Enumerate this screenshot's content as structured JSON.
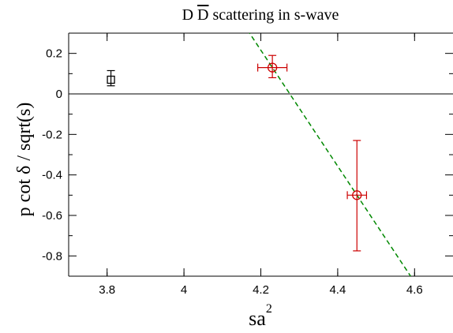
{
  "chart_data": {
    "type": "scatter",
    "title": "D D̅ scattering in s-wave",
    "title_parts": {
      "prefix": "D ",
      "overlined": "D",
      "suffix": " scattering in s-wave"
    },
    "xlabel": "sa",
    "xlabel_superscript": "2",
    "ylabel": "p cot δ / sqrt(s)",
    "xlim": [
      3.7,
      4.7
    ],
    "ylim": [
      -0.9,
      0.3
    ],
    "x_ticks": [
      3.8,
      4.0,
      4.2,
      4.4,
      4.6
    ],
    "x_tick_labels": [
      "3.8",
      "4",
      "4.2",
      "4.4",
      "4.6"
    ],
    "y_ticks": [
      0.2,
      0.0,
      -0.2,
      -0.4,
      -0.6,
      -0.8
    ],
    "y_tick_labels": [
      "0.2",
      "0",
      "-0.2",
      "-0.4",
      "-0.6",
      "-0.8"
    ],
    "grid": false,
    "legend": "none",
    "zero_line": 0,
    "series": [
      {
        "marker": "square",
        "color": "#000000",
        "points": [
          {
            "x": 3.81,
            "y": 0.07,
            "yerr_low": 0.03,
            "yerr_high": 0.045
          }
        ]
      },
      {
        "marker": "circle",
        "color": "#cc0000",
        "points": [
          {
            "x": 4.23,
            "y": 0.13,
            "xerr": 0.038,
            "yerr_low": 0.05,
            "yerr_high": 0.06
          },
          {
            "x": 4.45,
            "y": -0.5,
            "xerr": 0.025,
            "yerr_low": 0.275,
            "yerr_high": 0.27
          }
        ]
      }
    ],
    "fit_line": {
      "style": "dashed",
      "color": "#008800",
      "points": [
        {
          "x": 4.23,
          "y": 0.13
        },
        {
          "x": 4.45,
          "y": -0.5
        }
      ]
    }
  }
}
